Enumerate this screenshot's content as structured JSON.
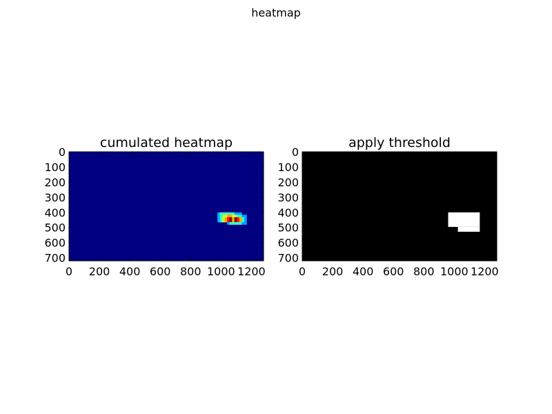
{
  "figure": {
    "title": "heatmap"
  },
  "chart_data": [
    {
      "type": "heatmap",
      "title": "cumulated heatmap",
      "colormap": "jet",
      "xlim": [
        0,
        1280
      ],
      "ylim": [
        720,
        0
      ],
      "xticks": [
        0,
        200,
        400,
        600,
        800,
        1000,
        1200
      ],
      "yticks": [
        0,
        100,
        200,
        300,
        400,
        500,
        600,
        700
      ],
      "cell_size": 16,
      "background_value": 0,
      "vmax": 7,
      "cells": [
        {
          "x": 976,
          "y": 400,
          "v": 2
        },
        {
          "x": 992,
          "y": 400,
          "v": 3
        },
        {
          "x": 1008,
          "y": 400,
          "v": 3
        },
        {
          "x": 1024,
          "y": 400,
          "v": 3
        },
        {
          "x": 1040,
          "y": 400,
          "v": 3
        },
        {
          "x": 1056,
          "y": 400,
          "v": 3
        },
        {
          "x": 1072,
          "y": 400,
          "v": 3
        },
        {
          "x": 1088,
          "y": 400,
          "v": 2
        },
        {
          "x": 1104,
          "y": 400,
          "v": 2
        },
        {
          "x": 1120,
          "y": 400,
          "v": 2
        },
        {
          "x": 976,
          "y": 416,
          "v": 2
        },
        {
          "x": 992,
          "y": 416,
          "v": 3
        },
        {
          "x": 1008,
          "y": 416,
          "v": 4
        },
        {
          "x": 1024,
          "y": 416,
          "v": 4
        },
        {
          "x": 1040,
          "y": 416,
          "v": 5
        },
        {
          "x": 1056,
          "y": 416,
          "v": 5
        },
        {
          "x": 1072,
          "y": 416,
          "v": 4
        },
        {
          "x": 1088,
          "y": 416,
          "v": 4
        },
        {
          "x": 1104,
          "y": 416,
          "v": 3
        },
        {
          "x": 1120,
          "y": 416,
          "v": 3
        },
        {
          "x": 1136,
          "y": 416,
          "v": 2
        },
        {
          "x": 1152,
          "y": 416,
          "v": 2
        },
        {
          "x": 976,
          "y": 432,
          "v": 2
        },
        {
          "x": 992,
          "y": 432,
          "v": 3
        },
        {
          "x": 1008,
          "y": 432,
          "v": 4
        },
        {
          "x": 1024,
          "y": 432,
          "v": 5
        },
        {
          "x": 1040,
          "y": 432,
          "v": 6
        },
        {
          "x": 1056,
          "y": 432,
          "v": 7
        },
        {
          "x": 1072,
          "y": 432,
          "v": 5
        },
        {
          "x": 1088,
          "y": 432,
          "v": 7
        },
        {
          "x": 1104,
          "y": 432,
          "v": 6
        },
        {
          "x": 1120,
          "y": 432,
          "v": 5
        },
        {
          "x": 1136,
          "y": 432,
          "v": 3
        },
        {
          "x": 1152,
          "y": 432,
          "v": 2
        },
        {
          "x": 976,
          "y": 448,
          "v": 2
        },
        {
          "x": 992,
          "y": 448,
          "v": 3
        },
        {
          "x": 1008,
          "y": 448,
          "v": 4
        },
        {
          "x": 1024,
          "y": 448,
          "v": 5
        },
        {
          "x": 1040,
          "y": 448,
          "v": 6
        },
        {
          "x": 1056,
          "y": 448,
          "v": 7
        },
        {
          "x": 1072,
          "y": 448,
          "v": 5
        },
        {
          "x": 1088,
          "y": 448,
          "v": 7
        },
        {
          "x": 1104,
          "y": 448,
          "v": 6
        },
        {
          "x": 1120,
          "y": 448,
          "v": 5
        },
        {
          "x": 1136,
          "y": 448,
          "v": 3
        },
        {
          "x": 1152,
          "y": 448,
          "v": 2
        },
        {
          "x": 1040,
          "y": 464,
          "v": 2
        },
        {
          "x": 1056,
          "y": 464,
          "v": 3
        },
        {
          "x": 1072,
          "y": 464,
          "v": 3
        },
        {
          "x": 1088,
          "y": 464,
          "v": 3
        },
        {
          "x": 1104,
          "y": 464,
          "v": 3
        },
        {
          "x": 1120,
          "y": 464,
          "v": 3
        },
        {
          "x": 1136,
          "y": 464,
          "v": 2
        },
        {
          "x": 1152,
          "y": 464,
          "v": 2
        }
      ]
    },
    {
      "type": "heatmap",
      "title": "apply threshold",
      "colormap": "binary",
      "xlim": [
        0,
        1280
      ],
      "ylim": [
        720,
        0
      ],
      "xticks": [
        0,
        200,
        400,
        600,
        800,
        1000,
        1200
      ],
      "yticks": [
        0,
        100,
        200,
        300,
        400,
        500,
        600,
        700
      ],
      "regions": [
        {
          "x0": 960,
          "y0": 400,
          "x1": 1168,
          "y1": 496
        },
        {
          "x0": 1024,
          "y0": 496,
          "x1": 1168,
          "y1": 528
        }
      ]
    }
  ]
}
